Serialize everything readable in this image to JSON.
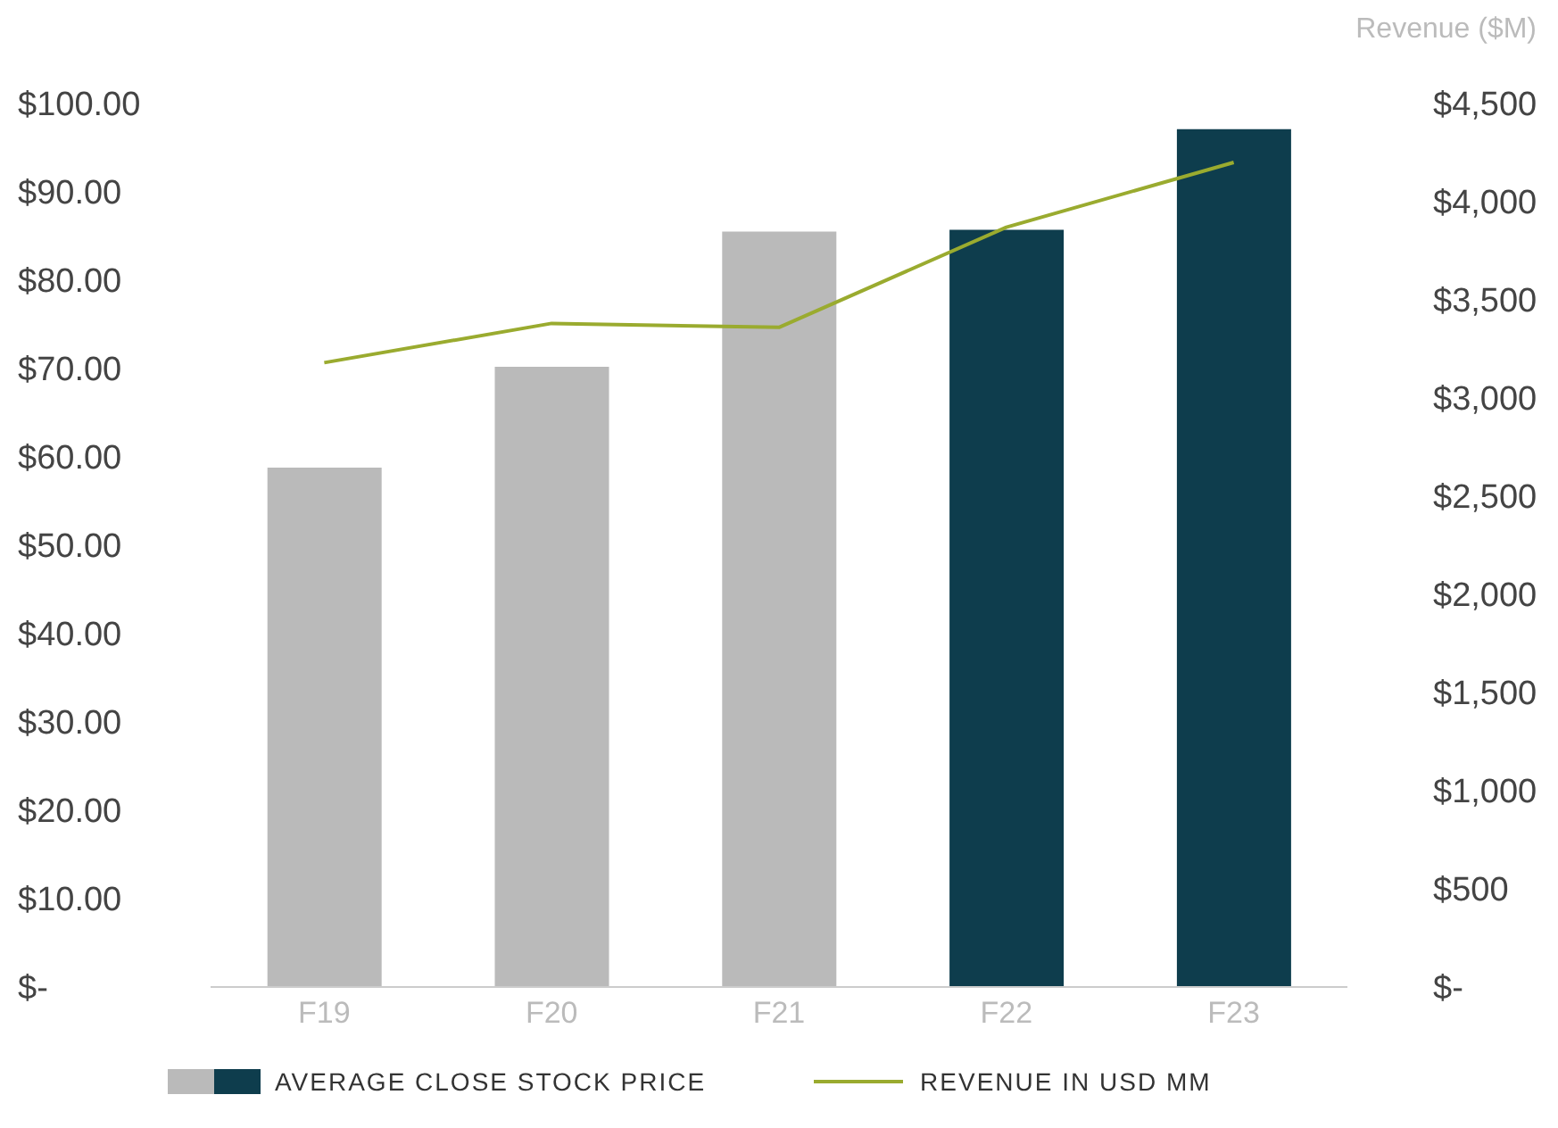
{
  "chart_data": {
    "type": "bar",
    "y2label": "Revenue ($M)",
    "categories": [
      "F19",
      "F20",
      "F21",
      "F22",
      "F23"
    ],
    "series": [
      {
        "name": "AVERAGE CLOSE STOCK PRICE",
        "colors": [
          "#bababa",
          "#bababa",
          "#bababa",
          "#0e3d4d",
          "#0e3d4d"
        ],
        "values": [
          58.8,
          70.2,
          85.5,
          85.7,
          97.1
        ]
      },
      {
        "name": "REVENUE IN USD MM",
        "type": "line",
        "axis": "y2",
        "color": "#9aab2f",
        "values": [
          3180,
          3380,
          3360,
          3870,
          4200
        ]
      }
    ],
    "ylim": [
      0,
      100
    ],
    "yticks": [
      {
        "value": 0,
        "label": "$-"
      },
      {
        "value": 10,
        "label": "$10.00"
      },
      {
        "value": 20,
        "label": "$20.00"
      },
      {
        "value": 30,
        "label": "$30.00"
      },
      {
        "value": 40,
        "label": "$40.00"
      },
      {
        "value": 50,
        "label": "$50.00"
      },
      {
        "value": 60,
        "label": "$60.00"
      },
      {
        "value": 70,
        "label": "$70.00"
      },
      {
        "value": 80,
        "label": "$80.00"
      },
      {
        "value": 90,
        "label": "$90.00"
      },
      {
        "value": 100,
        "label": "$100.00"
      }
    ],
    "y2lim": [
      0,
      4500
    ],
    "y2ticks": [
      {
        "value": 0,
        "label": "$-"
      },
      {
        "value": 500,
        "label": "$500"
      },
      {
        "value": 1000,
        "label": "$1,000"
      },
      {
        "value": 1500,
        "label": "$1,500"
      },
      {
        "value": 2000,
        "label": "$2,000"
      },
      {
        "value": 2500,
        "label": "$2,500"
      },
      {
        "value": 3000,
        "label": "$3,000"
      },
      {
        "value": 3500,
        "label": "$3,500"
      },
      {
        "value": 4000,
        "label": "$4,000"
      },
      {
        "value": 4500,
        "label": "$4,500"
      }
    ],
    "grid": false,
    "legend": "bottom",
    "marker": "none",
    "line_style": "solid"
  }
}
